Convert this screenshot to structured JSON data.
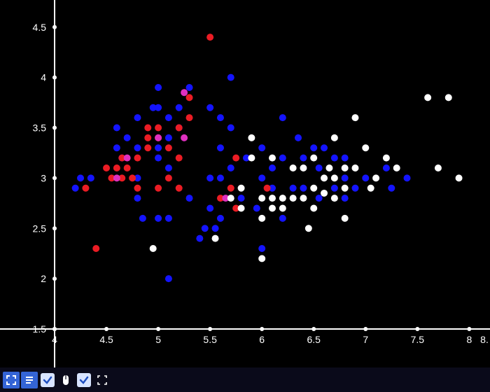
{
  "chart": {
    "type": "scatter",
    "background_color": "#000000",
    "axis_color": "#ffffff",
    "tick_label_color": "#ffffff",
    "tick_label_fontsize": 14,
    "marker_radius": 5,
    "xlim": [
      4.0,
      8.2
    ],
    "ylim": [
      1.5,
      4.7
    ],
    "x_ticks": [
      4,
      4.5,
      5,
      5.5,
      6,
      6.5,
      7,
      7.5,
      8
    ],
    "x_tick_labels": [
      "4",
      "4.5",
      "5",
      "5.5",
      "6",
      "6.5",
      "7",
      "7.5",
      "8"
    ],
    "x_tail_label": "8.",
    "y_ticks": [
      1.5,
      2,
      2.5,
      3,
      3.5,
      4,
      4.5
    ],
    "y_tick_labels": [
      "1.5",
      "2",
      "2.5",
      "3",
      "3.5",
      "4",
      "4.5"
    ],
    "tick_marker_radius": 3,
    "colors": {
      "red": "#eb1c24",
      "blue": "#1414ff",
      "white": "#ffffff",
      "magenta": "#e030c0"
    },
    "series": [
      {
        "color_key": "blue",
        "points": [
          [
            4.2,
            2.9
          ],
          [
            4.25,
            3.0
          ],
          [
            4.35,
            3.0
          ],
          [
            4.6,
            3.3
          ],
          [
            4.6,
            3.5
          ],
          [
            4.7,
            3.4
          ],
          [
            4.65,
            3.2
          ],
          [
            4.8,
            3.3
          ],
          [
            4.8,
            3.6
          ],
          [
            4.8,
            3.0
          ],
          [
            4.8,
            2.8
          ],
          [
            4.95,
            3.7
          ],
          [
            4.85,
            2.6
          ],
          [
            5.0,
            3.9
          ],
          [
            5.0,
            3.7
          ],
          [
            5.0,
            3.3
          ],
          [
            5.0,
            3.2
          ],
          [
            5.0,
            2.6
          ],
          [
            5.1,
            3.6
          ],
          [
            5.1,
            3.4
          ],
          [
            5.1,
            3.1
          ],
          [
            5.1,
            2.6
          ],
          [
            5.1,
            2.0
          ],
          [
            5.2,
            3.5
          ],
          [
            5.2,
            3.7
          ],
          [
            5.3,
            3.9
          ],
          [
            5.3,
            2.8
          ],
          [
            5.4,
            2.4
          ],
          [
            5.45,
            2.5
          ],
          [
            5.5,
            3.7
          ],
          [
            5.5,
            3.0
          ],
          [
            5.5,
            2.7
          ],
          [
            5.55,
            2.5
          ],
          [
            5.6,
            3.6
          ],
          [
            5.6,
            3.3
          ],
          [
            5.6,
            3.0
          ],
          [
            5.6,
            2.6
          ],
          [
            5.7,
            4.0
          ],
          [
            5.7,
            3.5
          ],
          [
            5.7,
            3.1
          ],
          [
            5.8,
            2.8
          ],
          [
            5.85,
            3.2
          ],
          [
            5.95,
            2.7
          ],
          [
            6.0,
            3.3
          ],
          [
            6.0,
            3.0
          ],
          [
            6.0,
            2.3
          ],
          [
            6.1,
            3.1
          ],
          [
            6.1,
            2.9
          ],
          [
            6.2,
            3.6
          ],
          [
            6.2,
            3.2
          ],
          [
            6.2,
            2.6
          ],
          [
            6.3,
            2.9
          ],
          [
            6.35,
            3.4
          ],
          [
            6.4,
            3.2
          ],
          [
            6.4,
            2.9
          ],
          [
            6.5,
            3.3
          ],
          [
            6.55,
            3.1
          ],
          [
            6.55,
            2.8
          ],
          [
            6.6,
            3.3
          ],
          [
            6.7,
            3.2
          ],
          [
            6.7,
            2.9
          ],
          [
            6.8,
            3.2
          ],
          [
            6.8,
            3.0
          ],
          [
            6.8,
            2.8
          ],
          [
            6.9,
            2.9
          ],
          [
            7.0,
            3.0
          ],
          [
            7.2,
            3.1
          ],
          [
            7.25,
            2.9
          ],
          [
            7.4,
            3.0
          ]
        ]
      },
      {
        "color_key": "red",
        "points": [
          [
            4.3,
            2.9
          ],
          [
            4.4,
            2.3
          ],
          [
            4.5,
            3.1
          ],
          [
            4.55,
            3.0
          ],
          [
            4.6,
            3.1
          ],
          [
            4.65,
            3.2
          ],
          [
            4.65,
            3.0
          ],
          [
            4.7,
            3.1
          ],
          [
            4.75,
            3.0
          ],
          [
            4.8,
            3.2
          ],
          [
            4.8,
            2.9
          ],
          [
            4.9,
            3.5
          ],
          [
            4.9,
            3.4
          ],
          [
            4.9,
            3.3
          ],
          [
            5.0,
            3.4
          ],
          [
            5.0,
            3.5
          ],
          [
            5.0,
            2.9
          ],
          [
            5.1,
            3.3
          ],
          [
            5.1,
            3.0
          ],
          [
            5.2,
            3.5
          ],
          [
            5.2,
            3.2
          ],
          [
            5.2,
            2.9
          ],
          [
            5.3,
            3.8
          ],
          [
            5.3,
            3.6
          ],
          [
            5.5,
            4.4
          ],
          [
            5.6,
            2.8
          ],
          [
            5.7,
            2.9
          ],
          [
            5.75,
            3.2
          ],
          [
            5.75,
            2.7
          ],
          [
            6.05,
            2.9
          ]
        ]
      },
      {
        "color_key": "white",
        "points": [
          [
            4.95,
            2.3
          ],
          [
            5.55,
            2.4
          ],
          [
            5.7,
            2.8
          ],
          [
            5.8,
            2.9
          ],
          [
            5.8,
            2.7
          ],
          [
            5.9,
            3.4
          ],
          [
            5.9,
            3.2
          ],
          [
            6.0,
            2.8
          ],
          [
            6.0,
            2.6
          ],
          [
            6.0,
            2.2
          ],
          [
            6.1,
            3.2
          ],
          [
            6.1,
            2.8
          ],
          [
            6.1,
            2.7
          ],
          [
            6.2,
            2.8
          ],
          [
            6.2,
            2.7
          ],
          [
            6.3,
            3.1
          ],
          [
            6.3,
            2.8
          ],
          [
            6.4,
            3.1
          ],
          [
            6.4,
            2.8
          ],
          [
            6.45,
            2.5
          ],
          [
            6.5,
            3.2
          ],
          [
            6.5,
            2.9
          ],
          [
            6.5,
            2.7
          ],
          [
            6.6,
            3.0
          ],
          [
            6.6,
            2.85
          ],
          [
            6.65,
            3.1
          ],
          [
            6.7,
            3.4
          ],
          [
            6.7,
            3.0
          ],
          [
            6.7,
            2.8
          ],
          [
            6.8,
            3.1
          ],
          [
            6.8,
            2.9
          ],
          [
            6.8,
            2.6
          ],
          [
            6.9,
            3.6
          ],
          [
            6.9,
            3.1
          ],
          [
            7.0,
            3.3
          ],
          [
            7.05,
            2.9
          ],
          [
            7.1,
            3.0
          ],
          [
            7.2,
            3.2
          ],
          [
            7.3,
            3.1
          ],
          [
            7.6,
            3.8
          ],
          [
            7.7,
            3.1
          ],
          [
            7.8,
            3.8
          ],
          [
            7.9,
            3.0
          ]
        ]
      },
      {
        "color_key": "magenta",
        "points": [
          [
            4.6,
            3.0
          ],
          [
            4.7,
            3.2
          ],
          [
            5.0,
            3.4
          ],
          [
            5.25,
            3.4
          ],
          [
            5.25,
            3.85
          ],
          [
            5.65,
            2.8
          ]
        ]
      }
    ]
  },
  "toolbar": {
    "background_color": "#0a0a1a",
    "button_blue": "#3464d6",
    "button_check_bg": "#d8e4ff",
    "button_check_fg": "#2050c0",
    "icons": {
      "expand": "expand-icon",
      "align": "align-icon",
      "check1": "check-icon",
      "mouse": "mouse-icon",
      "check2": "check-icon",
      "fullscreen": "fullscreen-icon"
    }
  }
}
